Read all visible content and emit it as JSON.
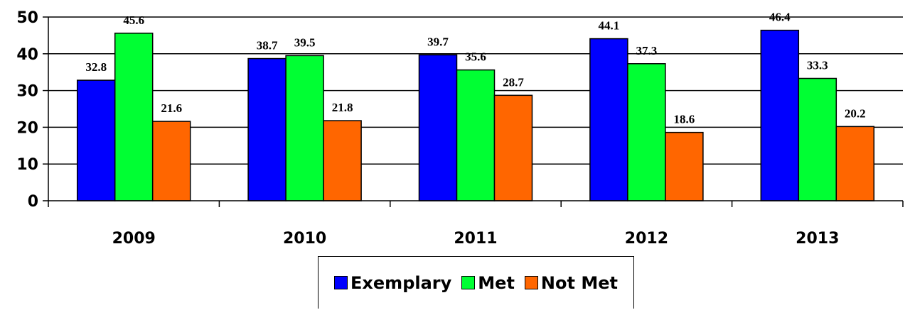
{
  "chart_data": {
    "type": "bar",
    "title": "",
    "xlabel": "",
    "ylabel": "",
    "categories": [
      "2009",
      "2010",
      "2011",
      "2012",
      "2013"
    ],
    "series": [
      {
        "name": "Exemplary",
        "color": "#0000ff",
        "values": [
          32.8,
          38.7,
          39.7,
          44.1,
          46.4
        ]
      },
      {
        "name": "Met",
        "color": "#00ff33",
        "values": [
          45.6,
          39.5,
          35.6,
          37.3,
          33.3
        ]
      },
      {
        "name": "Not Met",
        "color": "#ff6600",
        "values": [
          21.6,
          21.8,
          28.7,
          18.6,
          20.2
        ]
      }
    ],
    "ylim": [
      0,
      50
    ],
    "yticks": [
      0,
      10,
      20,
      30,
      40,
      50
    ],
    "grid": true,
    "legend_position": "bottom-center"
  }
}
